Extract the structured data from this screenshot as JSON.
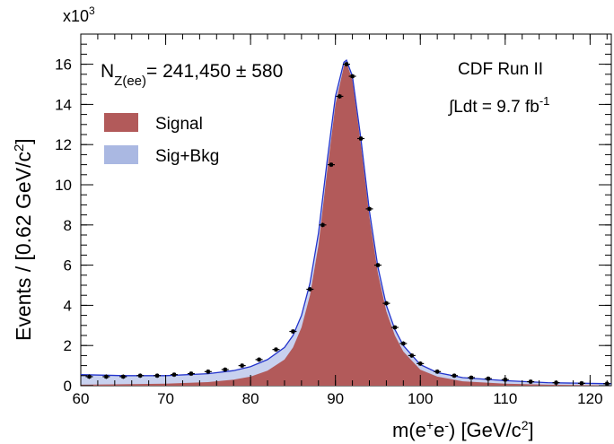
{
  "chart_data": {
    "type": "area",
    "title": "",
    "xlabel": "m(e+e-) [GeV/c2]",
    "ylabel": "Events / [0.62 GeV/c2]",
    "y_multiplier": "x10^3",
    "xlim": [
      60,
      122.5
    ],
    "ylim": [
      0,
      17.5
    ],
    "x_ticks": [
      60,
      70,
      80,
      90,
      100,
      110,
      120
    ],
    "y_ticks": [
      0,
      2,
      4,
      6,
      8,
      10,
      12,
      14,
      16
    ],
    "annotations": {
      "yield": "N_Z(ee) = 241,450 ± 580",
      "experiment": "CDF Run II",
      "luminosity": "∫Ldt = 9.7 fb^-1"
    },
    "legend": {
      "placement": "top-left",
      "entries": [
        {
          "label": "Signal",
          "color": "#b25a5a"
        },
        {
          "label": "Sig+Bkg",
          "color": "#aab8e2"
        }
      ]
    },
    "series": [
      {
        "name": "Signal",
        "color": "#b25a5a",
        "x": [
          60,
          65,
          70,
          75,
          78,
          80,
          82,
          84,
          85,
          86,
          87,
          88,
          89,
          90,
          91,
          91.3,
          92,
          93,
          94,
          95,
          96,
          97,
          98,
          100,
          102,
          105,
          110,
          115,
          122.5
        ],
        "y": [
          0.05,
          0.07,
          0.1,
          0.18,
          0.3,
          0.45,
          0.75,
          1.3,
          1.9,
          2.9,
          4.5,
          7.0,
          10.6,
          14.0,
          15.9,
          16.1,
          15.2,
          12.0,
          8.4,
          5.6,
          3.7,
          2.5,
          1.7,
          0.8,
          0.45,
          0.22,
          0.1,
          0.05,
          0.02
        ]
      },
      {
        "name": "Sig+Bkg",
        "color": "#2233cc",
        "x": [
          60,
          65,
          70,
          75,
          78,
          80,
          82,
          84,
          85,
          86,
          87,
          88,
          89,
          90,
          91,
          91.3,
          92,
          93,
          94,
          95,
          96,
          97,
          98,
          100,
          102,
          105,
          110,
          115,
          122.5
        ],
        "y": [
          0.55,
          0.5,
          0.5,
          0.6,
          0.75,
          0.95,
          1.3,
          1.9,
          2.5,
          3.5,
          5.1,
          7.6,
          11.1,
          14.4,
          16.1,
          16.2,
          15.4,
          12.3,
          8.7,
          5.9,
          4.0,
          2.8,
          2.0,
          1.05,
          0.65,
          0.4,
          0.25,
          0.15,
          0.1
        ]
      },
      {
        "name": "Data",
        "color": "#000000",
        "x": [
          61,
          63,
          65,
          67,
          69,
          71,
          73,
          75,
          77,
          79,
          81,
          83,
          85,
          87,
          88.5,
          89.5,
          90.5,
          91.3,
          92,
          93,
          94,
          95,
          96,
          97,
          98,
          99,
          100,
          102,
          104,
          106,
          108,
          110,
          113,
          116,
          119,
          122
        ],
        "y": [
          0.45,
          0.45,
          0.45,
          0.5,
          0.5,
          0.55,
          0.6,
          0.7,
          0.8,
          1.0,
          1.3,
          1.8,
          2.7,
          4.8,
          8.0,
          11.0,
          14.4,
          16.0,
          15.4,
          12.3,
          8.8,
          6.0,
          4.1,
          2.9,
          2.1,
          1.5,
          1.1,
          0.7,
          0.5,
          0.4,
          0.35,
          0.3,
          0.2,
          0.15,
          0.12,
          0.1
        ]
      }
    ]
  }
}
